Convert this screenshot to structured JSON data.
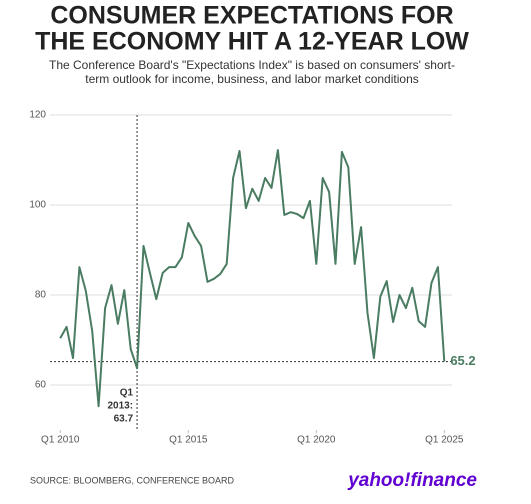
{
  "chart_data": {
    "type": "line",
    "title": [
      "CONSUMER EXPECTATIONS FOR",
      "THE ECONOMY HIT A 12-YEAR LOW"
    ],
    "subtitle": [
      "The Conference Board's \"Expectations Index\" is based on consumers' short-",
      "term outlook for income, business, and labor market conditions"
    ],
    "source": "SOURCE: BLOOMBERG, CONFERENCE BOARD",
    "logo": "yahoo!finance",
    "x": [
      2010,
      2010.25,
      2010.5,
      2010.75,
      2011,
      2011.25,
      2011.5,
      2011.75,
      2012,
      2012.25,
      2012.5,
      2012.75,
      2013,
      2013.25,
      2013.5,
      2013.75,
      2014,
      2014.25,
      2014.5,
      2014.75,
      2015,
      2015.25,
      2015.5,
      2015.75,
      2016,
      2016.25,
      2016.5,
      2016.75,
      2017,
      2017.25,
      2017.5,
      2017.75,
      2018,
      2018.25,
      2018.5,
      2018.75,
      2019,
      2019.25,
      2019.5,
      2019.75,
      2020,
      2020.25,
      2020.5,
      2020.75,
      2021,
      2021.25,
      2021.5,
      2021.75,
      2022,
      2022.25,
      2022.5,
      2022.75,
      2023,
      2023.25,
      2023.5,
      2023.75,
      2024,
      2024.25,
      2024.5,
      2024.75,
      2025
    ],
    "series": [
      {
        "color": "#4a7c62",
        "values": [
          70.4,
          72.9,
          66,
          86.2,
          80.9,
          72,
          55.3,
          77.1,
          82.2,
          73.6,
          81.1,
          68,
          63.7,
          90.9,
          84.9,
          79.1,
          84.9,
          86.2,
          86.2,
          88.4,
          96,
          93.1,
          90.9,
          82.9,
          83.6,
          84.7,
          86.9,
          106,
          112,
          99.3,
          103.6,
          100.9,
          106,
          103.8,
          112.2,
          97.8,
          98.4,
          98,
          97.1,
          100.9,
          86.9,
          106,
          102.9,
          86.9,
          111.8,
          108.4,
          86.9,
          95.1,
          76,
          66,
          79.6,
          83.1,
          74,
          80,
          77.1,
          81.6,
          74.2,
          72.9,
          82.7,
          86.2,
          65.2
        ]
      }
    ],
    "xlim": [
      2009.6,
      2025.3
    ],
    "xticks": [
      {
        "value": 2010,
        "label": "Q1 2010"
      },
      {
        "value": 2015,
        "label": "Q1 2015"
      },
      {
        "value": 2020,
        "label": "Q1 2020"
      },
      {
        "value": 2025,
        "label": "Q1 2025"
      }
    ],
    "ylim": [
      50,
      120
    ],
    "yticks": [
      60,
      80,
      100,
      120
    ],
    "grid": true,
    "reference_lines": {
      "x": 2013,
      "y": 65.2
    },
    "annotation": [
      "Q1",
      "2013:",
      "63.7"
    ]
  }
}
